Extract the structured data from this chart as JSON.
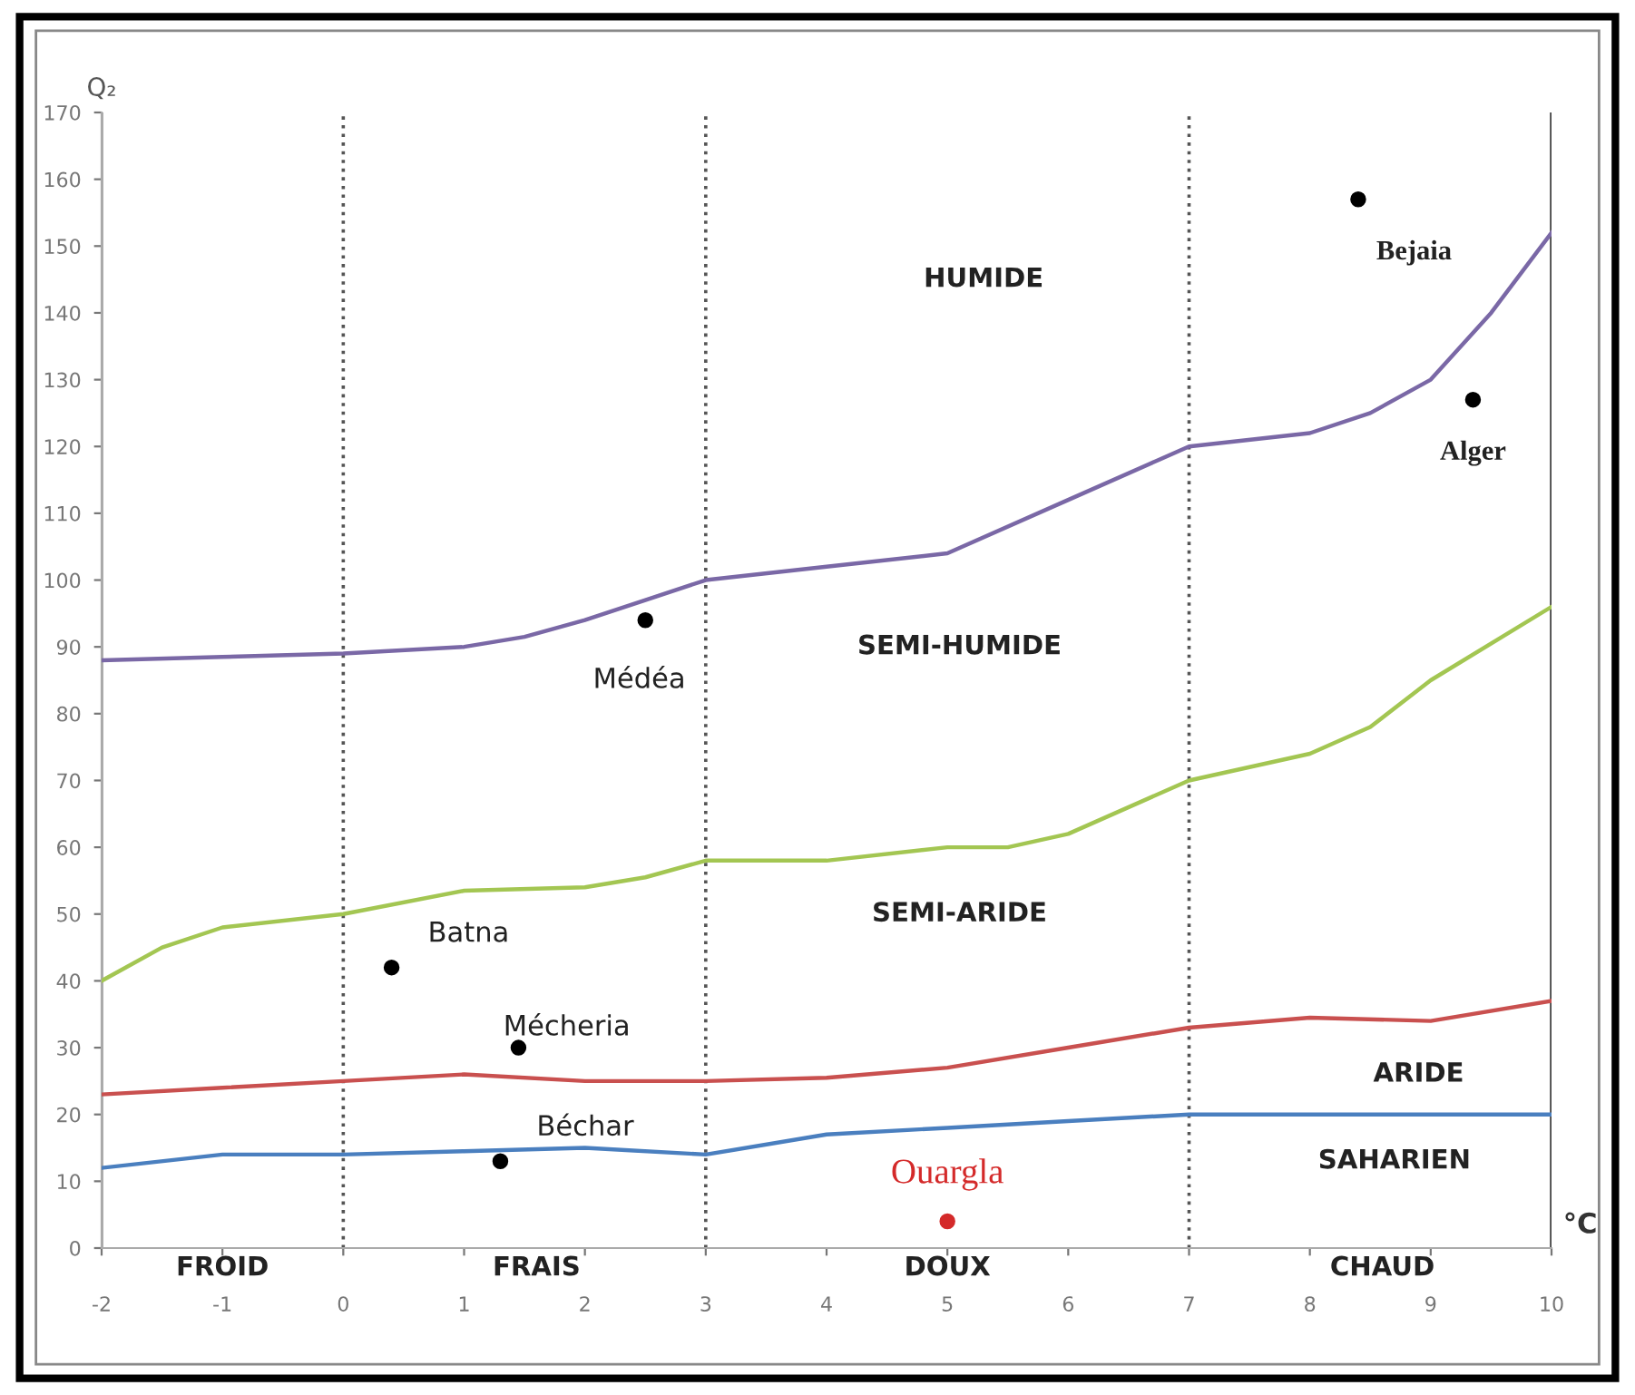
{
  "chart_data": {
    "type": "line",
    "xlabel": "°C",
    "ylabel": "Q₂",
    "xlim": [
      -2,
      10
    ],
    "ylim": [
      0,
      170
    ],
    "xticks": [
      -2,
      -1,
      0,
      1,
      2,
      3,
      4,
      5,
      6,
      7,
      8,
      9,
      10
    ],
    "yticks": [
      0,
      10,
      20,
      30,
      40,
      50,
      60,
      70,
      80,
      90,
      100,
      110,
      120,
      130,
      140,
      150,
      160,
      170
    ],
    "grid": false,
    "marker": "none",
    "line_style": "solid",
    "series": [
      {
        "color": "#7a68a6",
        "x": [
          -2,
          -1,
          0,
          1,
          1.5,
          2,
          2.5,
          3,
          4,
          5,
          6,
          7,
          8,
          8.5,
          9,
          9.5,
          10
        ],
        "values": [
          88,
          88.5,
          89,
          90,
          91.5,
          94,
          97,
          100,
          102,
          104,
          112,
          120,
          122,
          125,
          130,
          140,
          152
        ]
      },
      {
        "color": "#a3c652",
        "x": [
          -2,
          -1.5,
          -1,
          0,
          1,
          2,
          2.5,
          3,
          4,
          5,
          5.5,
          6,
          7,
          8,
          8.5,
          9,
          10
        ],
        "values": [
          40,
          45,
          48,
          50,
          53.5,
          54,
          55.5,
          58,
          58,
          60,
          60,
          62,
          70,
          74,
          78,
          85,
          96
        ]
      },
      {
        "color": "#c9504f",
        "x": [
          -2,
          -1,
          0,
          1,
          2,
          3,
          4,
          5,
          6,
          7,
          8,
          9,
          10
        ],
        "values": [
          23,
          24,
          25,
          26,
          25,
          25,
          25.5,
          27,
          30,
          33,
          34.5,
          34,
          37
        ]
      },
      {
        "color": "#4a7fbf",
        "x": [
          -2,
          -1,
          0,
          1,
          2,
          3,
          4,
          5,
          6,
          7,
          8,
          9,
          10
        ],
        "values": [
          12,
          14,
          14,
          14.5,
          15,
          14,
          17,
          18,
          19,
          20,
          20,
          20,
          20
        ]
      },
      {
        "type": "scatter",
        "marker": "circle",
        "x": [
          8.4,
          9.35,
          2.5,
          0.4,
          1.45,
          1.3,
          5
        ],
        "values": [
          157,
          127,
          94,
          42,
          30,
          13,
          4
        ],
        "colors": [
          "#000000",
          "#000000",
          "#000000",
          "#000000",
          "#000000",
          "#000000",
          "#d42a2a"
        ]
      }
    ],
    "ref_lines": [
      {
        "axis": "x",
        "value": -2,
        "color": "#9a9a9a",
        "line_style": "solid"
      },
      {
        "axis": "x",
        "value": 0,
        "color": "#555555",
        "line_style": "dotted"
      },
      {
        "axis": "x",
        "value": 3,
        "color": "#555555",
        "line_style": "dotted"
      },
      {
        "axis": "x",
        "value": 7,
        "color": "#555555",
        "line_style": "dotted"
      },
      {
        "axis": "x",
        "value": 10,
        "color": "#444444",
        "line_style": "solid"
      }
    ],
    "annotations": [
      {
        "text": "Bejaia",
        "x": 8.4,
        "y": 157
      },
      {
        "text": "Alger",
        "x": 9.35,
        "y": 127
      },
      {
        "text": "Médéa",
        "x": 2.5,
        "y": 94
      },
      {
        "text": "Batna",
        "x": 0.4,
        "y": 42
      },
      {
        "text": "Mécheria",
        "x": 1.45,
        "y": 30
      },
      {
        "text": "Béchar",
        "x": 1.3,
        "y": 13
      },
      {
        "text": "Ouargla",
        "x": 5,
        "y": 4
      },
      "HUMIDE",
      "SEMI-HUMIDE",
      "SEMI-ARIDE",
      "ARIDE",
      "SAHARIEN",
      "FROID",
      "FRAIS",
      "DOUX",
      "CHAUD"
    ]
  }
}
